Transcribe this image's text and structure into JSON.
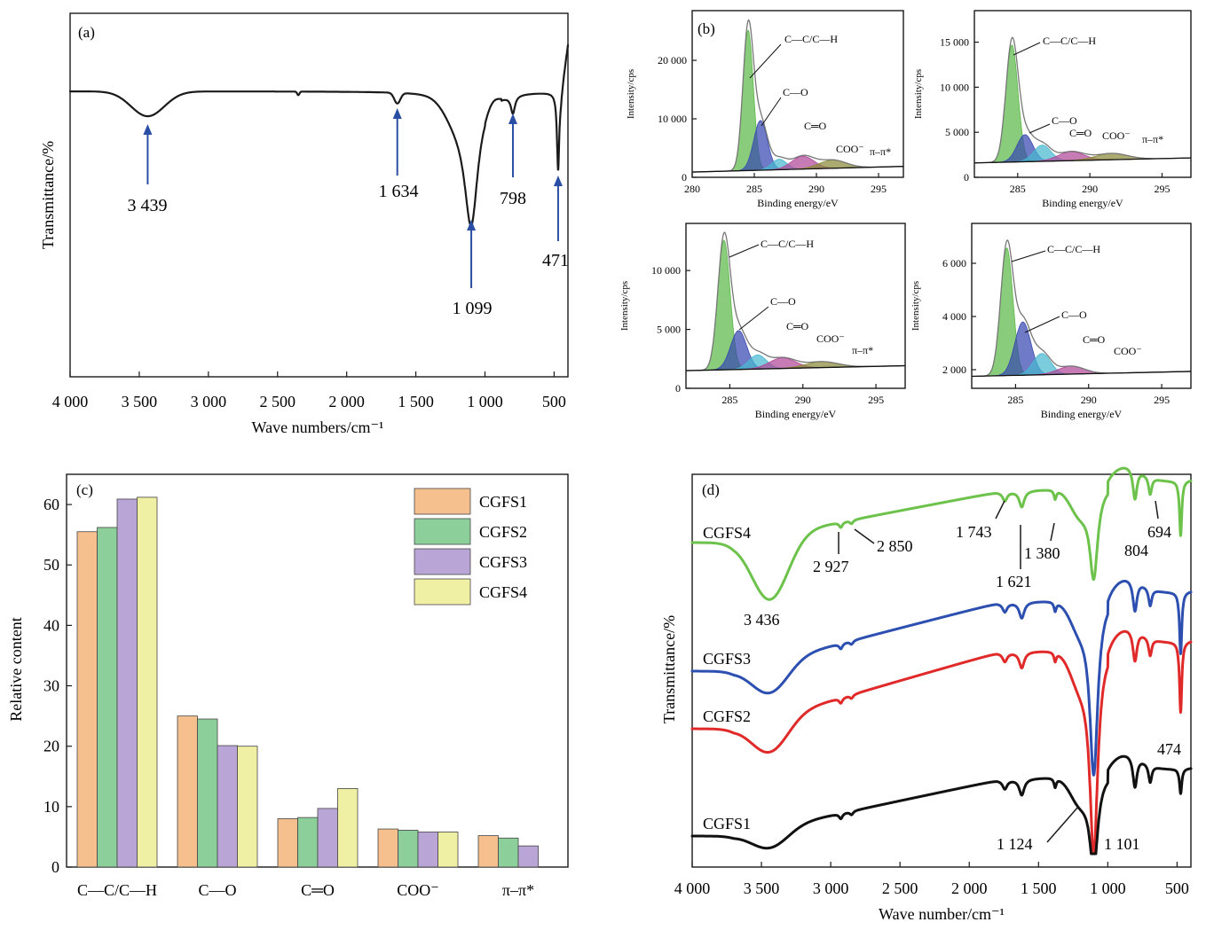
{
  "panels": {
    "a": {
      "label": "(a)",
      "xlabel": "Wave numbers/cm⁻¹",
      "ylabel": "Transmittance/%",
      "xticks": [
        "4 000",
        "3 500",
        "3 000",
        "2 500",
        "2 000",
        "1 500",
        "1 000",
        "500"
      ],
      "xtick_values": [
        4000,
        3500,
        3000,
        2500,
        2000,
        1500,
        1000,
        500
      ],
      "xlim": [
        4000,
        400
      ],
      "peaks": [
        {
          "label": "3 439",
          "x": 3439
        },
        {
          "label": "1 634",
          "x": 1634
        },
        {
          "label": "1 099",
          "x": 1099
        },
        {
          "label": "798",
          "x": 798
        },
        {
          "label": "471",
          "x": 471
        }
      ],
      "line_color": "#1a1a1a",
      "arrow_color": "#2a4ea3"
    },
    "b": {
      "label": "(b)",
      "ylabel": "Intensity/cps",
      "xlabel": "Binding energy/eV",
      "component_labels": {
        "cc": "C—C/C—H",
        "co": "C—O",
        "cdo": "C═O",
        "coo": "COO⁻",
        "pi": "π–π*"
      },
      "colors": {
        "cc": "#5cb848",
        "co": "#3848b0",
        "cdo": "#48b8d0",
        "coo": "#b04898",
        "pi": "#8a8a3a"
      },
      "subplots": [
        {
          "yticks": [
            "0",
            "10 000",
            "20 000"
          ],
          "ytick_values": [
            0,
            10000,
            20000
          ],
          "ylim": [
            0,
            28500
          ],
          "xticks": [
            "280",
            "285",
            "290",
            "295"
          ],
          "xtick_values": [
            280,
            285,
            290,
            295
          ],
          "xlim": [
            280,
            297
          ],
          "baseline": 900,
          "peak_total": 28000,
          "components": [
            {
              "key": "cc",
              "center": 284.5,
              "height": 24000
            },
            {
              "key": "co",
              "center": 285.5,
              "height": 8500
            },
            {
              "key": "cdo",
              "center": 287.0,
              "height": 1800
            },
            {
              "key": "coo",
              "center": 288.9,
              "height": 2200
            },
            {
              "key": "pi",
              "center": 291.3,
              "height": 1400
            }
          ]
        },
        {
          "yticks": [
            "0",
            "5 000",
            "10 000",
            "15 000"
          ],
          "ytick_values": [
            0,
            5000,
            10000,
            15000
          ],
          "ylim": [
            0,
            18500
          ],
          "xticks": [
            "285",
            "290",
            "295"
          ],
          "xtick_values": [
            285,
            290,
            295
          ],
          "xlim": [
            282,
            297
          ],
          "baseline": 1600,
          "peak_total": 16500,
          "components": [
            {
              "key": "cc",
              "center": 284.6,
              "height": 13000
            },
            {
              "key": "co",
              "center": 285.5,
              "height": 3000
            },
            {
              "key": "cdo",
              "center": 286.7,
              "height": 1800
            },
            {
              "key": "coo",
              "center": 288.7,
              "height": 1000
            },
            {
              "key": "pi",
              "center": 291.5,
              "height": 700
            }
          ]
        },
        {
          "yticks": [
            "0",
            "5 000",
            "10 000"
          ],
          "ytick_values": [
            0,
            5000,
            10000
          ],
          "ylim": [
            0,
            14000
          ],
          "xticks": [
            "285",
            "290",
            "295"
          ],
          "xtick_values": [
            285,
            290,
            295
          ],
          "xlim": [
            282,
            297
          ],
          "baseline": 1500,
          "peak_total": 12800,
          "components": [
            {
              "key": "cc",
              "center": 284.6,
              "height": 11000
            },
            {
              "key": "co",
              "center": 285.6,
              "height": 3300
            },
            {
              "key": "cdo",
              "center": 286.9,
              "height": 1200
            },
            {
              "key": "coo",
              "center": 288.6,
              "height": 900
            },
            {
              "key": "pi",
              "center": 291.3,
              "height": 500
            }
          ]
        },
        {
          "yticks": [
            "2 000",
            "4 000",
            "6 000"
          ],
          "ytick_values": [
            2000,
            4000,
            6000
          ],
          "ylim": [
            1300,
            7500
          ],
          "xticks": [
            "285",
            "290",
            "295"
          ],
          "xtick_values": [
            285,
            290,
            295
          ],
          "xlim": [
            282,
            297
          ],
          "baseline": 1750,
          "peak_total": 7000,
          "components": [
            {
              "key": "cc",
              "center": 284.4,
              "height": 4800
            },
            {
              "key": "co",
              "center": 285.5,
              "height": 2000
            },
            {
              "key": "cdo",
              "center": 286.8,
              "height": 800
            },
            {
              "key": "coo",
              "center": 288.8,
              "height": 300
            }
          ]
        }
      ]
    },
    "c": {
      "label": "(c)",
      "ylabel": "Relative content",
      "yticks": [
        "0",
        "10",
        "20",
        "30",
        "40",
        "50",
        "60"
      ],
      "ytick_values": [
        0,
        10,
        20,
        30,
        40,
        50,
        60
      ],
      "ylim": [
        0,
        65
      ],
      "categories": [
        "C—C/C—H",
        "C—O",
        "C═O",
        "COO⁻",
        "π–π*"
      ],
      "series": [
        {
          "name": "CGFS1",
          "color": "#f6c08e",
          "values": [
            55.5,
            25.0,
            8.0,
            6.3,
            5.2
          ]
        },
        {
          "name": "CGFS2",
          "color": "#8ccf9a",
          "values": [
            56.2,
            24.5,
            8.2,
            6.1,
            4.8
          ]
        },
        {
          "name": "CGFS3",
          "color": "#b9a6d6",
          "values": [
            60.9,
            20.1,
            9.7,
            5.8,
            3.5
          ]
        },
        {
          "name": "CGFS4",
          "color": "#f0f0a4",
          "values": [
            61.2,
            20.0,
            13.0,
            5.8,
            0
          ]
        }
      ]
    },
    "d": {
      "label": "(d)",
      "xlabel": "Wave number/cm⁻¹",
      "ylabel": "Transmittance/%",
      "xticks": [
        "4 000",
        "3 500",
        "3 000",
        "2 500",
        "2 000",
        "1 500",
        "1 000",
        "500"
      ],
      "xtick_values": [
        4000,
        3500,
        3000,
        2500,
        2000,
        1500,
        1000,
        500
      ],
      "xlim": [
        4000,
        400
      ],
      "series": [
        {
          "name": "CGFS4",
          "color": "#6cc24a"
        },
        {
          "name": "CGFS3",
          "color": "#2c4fb0"
        },
        {
          "name": "CGFS2",
          "color": "#e02a2a"
        },
        {
          "name": "CGFS1",
          "color": "#111111"
        }
      ],
      "annotations": [
        "3 436",
        "2 927",
        "2 850",
        "1 743",
        "1 621",
        "1 380",
        "804",
        "694",
        "474",
        "1 124",
        "1 101"
      ]
    }
  }
}
